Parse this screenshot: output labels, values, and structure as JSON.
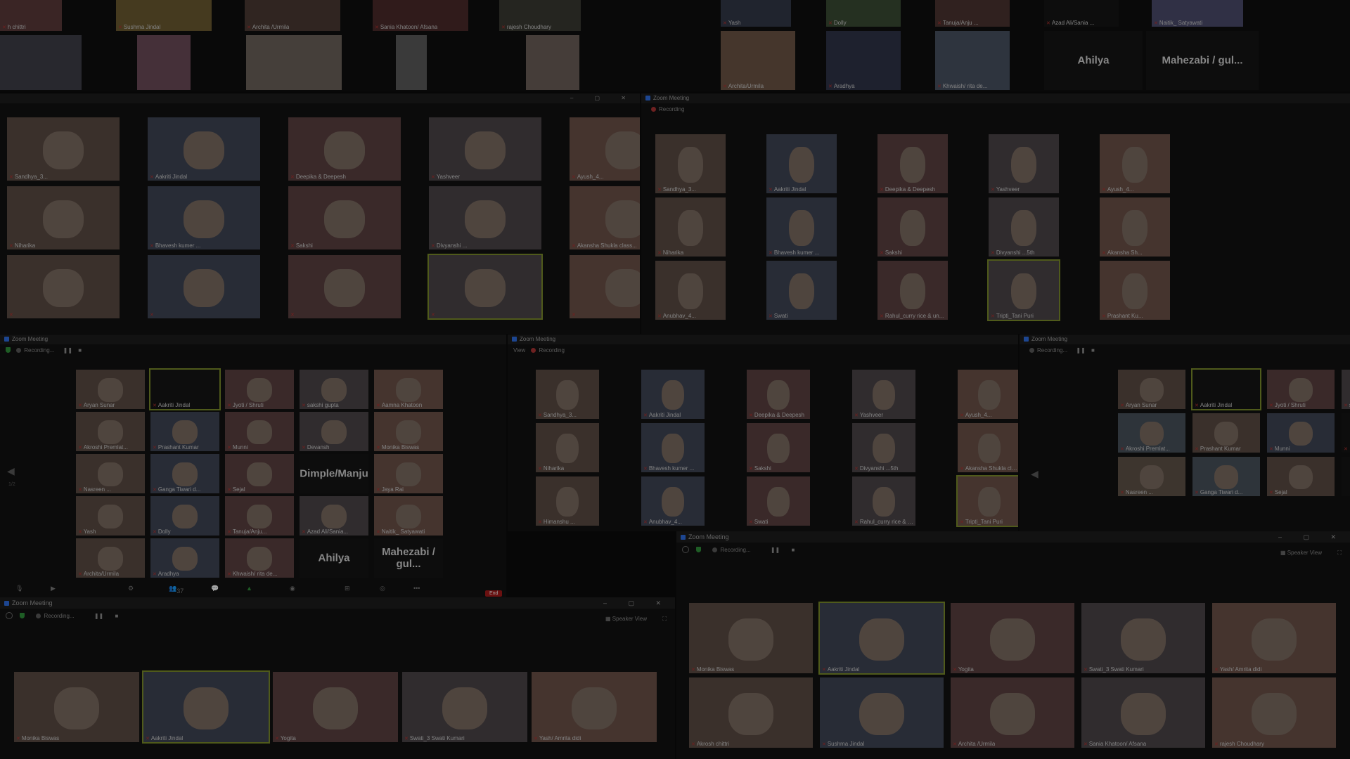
{
  "app_title": "Zoom Meeting",
  "recording_label": "Recording...",
  "recording_short": "Recording",
  "speaker_view_label": "Speaker View",
  "view_label": "View",
  "end_label": "End",
  "participants_count": "37",
  "pager": "1/2",
  "window_controls": "– ▢ ✕",
  "top_grid": {
    "row1": [
      "h chittri",
      "Sushma Jindal",
      "Archita /Urmila",
      "Sania Khatoon/ Afsana",
      "rajesh Choudhary"
    ],
    "row2": [
      "",
      "",
      "",
      "",
      ""
    ],
    "right_row1": [
      "Yash",
      "Dolly",
      "Tanuja/Anju ...",
      "Azad Ali/Sania ...",
      "Naitik_ Satyawati"
    ],
    "right_row2": [
      "Archita/Urmila",
      "Aradhya",
      "Khwaish/ rita de...",
      "",
      ""
    ],
    "right_big": [
      "Ahilya",
      "Mahezabi   / gul..."
    ]
  },
  "mid_left": {
    "tiles": [
      "Sandhya_3...",
      "Aakriti Jindal",
      "Deepika & Deepesh",
      "Yashveer",
      "Ayush_4...",
      "Niharika",
      "Bhavesh kumer ...",
      "Sakshi",
      "Divyanshi ...",
      "Akansha Shukla class...",
      "",
      "",
      "",
      "",
      ""
    ]
  },
  "mid_right": {
    "tiles": [
      "Sandhya_3...",
      "Aakriti Jindal",
      "Deepika & Deepesh",
      "Yashveer",
      "Ayush_4...",
      "Niharika",
      "Bhavesh kumer ...",
      "Sakshi",
      "Divyanshi ...5th",
      "Akansha Sh...",
      "Anubhav_4...",
      "Swati",
      "Rahul_curry rice & un...",
      "Tripti_Tani Puri",
      "Prashant Ku..."
    ],
    "edge": [
      "Sandhya_3...",
      "Aakriti Jindal",
      "Niharika",
      "Bhavesh kumer ...",
      "Anubhav_4...",
      "Swati"
    ]
  },
  "small_grid_a": {
    "tiles": [
      "Aryan Sunar",
      "Aakriti Jindal",
      "Jyoti / Shruti",
      "sakshi gupta",
      "Aamna Khatoon",
      "Akroshi Premlat...",
      "Prashant Kumar",
      "Munni",
      "Devansh",
      "Monika Biswas",
      "Nasreen ...",
      "Ganga Tiwari d...",
      "Sejal",
      "Dimple/Manju",
      "Jaya Rai",
      "Yash",
      "Dolly",
      "Tanuja/Anju...",
      "Azad Ali/Sania...",
      "Naitik_ Satyawati",
      "Archita/Urmila",
      "Aradhya",
      "Khwaish/ rita de...",
      "Ahilya",
      "Mahezabi   / gul..."
    ]
  },
  "small_grid_b": {
    "tiles": [
      "Sandhya_3...",
      "Aakriti Jindal",
      "Deepika & Deepesh",
      "Yashveer",
      "Ayush_4...",
      "Niharika",
      "Bhavesh kumer ...",
      "Sakshi",
      "Divyanshi ...5th",
      "Akansha Shukla class...",
      "Himanshu ...",
      "Anubhav_4...",
      "Swati",
      "Rahul_curry rice & un...",
      "Tripti_Tani Puri"
    ]
  },
  "small_grid_c": {
    "tiles": [
      "Aryan Sunar",
      "Aakriti Jindal",
      "Jyoti / Shruti",
      "sakshi gupta",
      "Akroshi Premlat...",
      "Prashant Kumar",
      "Munni",
      "",
      "Nasreen ...",
      "Ganga Tiwari d...",
      "Sejal",
      "Dim..."
    ]
  },
  "bottom_left": {
    "tiles": [
      "Monika Biswas",
      "Aakriti Jindal",
      "Yogita",
      "Swati_3 Swati Kumari",
      "Yash/ Amrita didi"
    ]
  },
  "bottom_right": {
    "row1": [
      "Monika Biswas",
      "Aakriti Jindal",
      "Yogita",
      "Swati_3 Swati Kumari",
      "Yash/ Amrita didi"
    ],
    "row2": [
      "Akrosh chittri",
      "Sushma Jindal",
      "Archita /Urmila",
      "Sania Khatoon/ Afsana",
      "rajesh Choudhary"
    ]
  }
}
